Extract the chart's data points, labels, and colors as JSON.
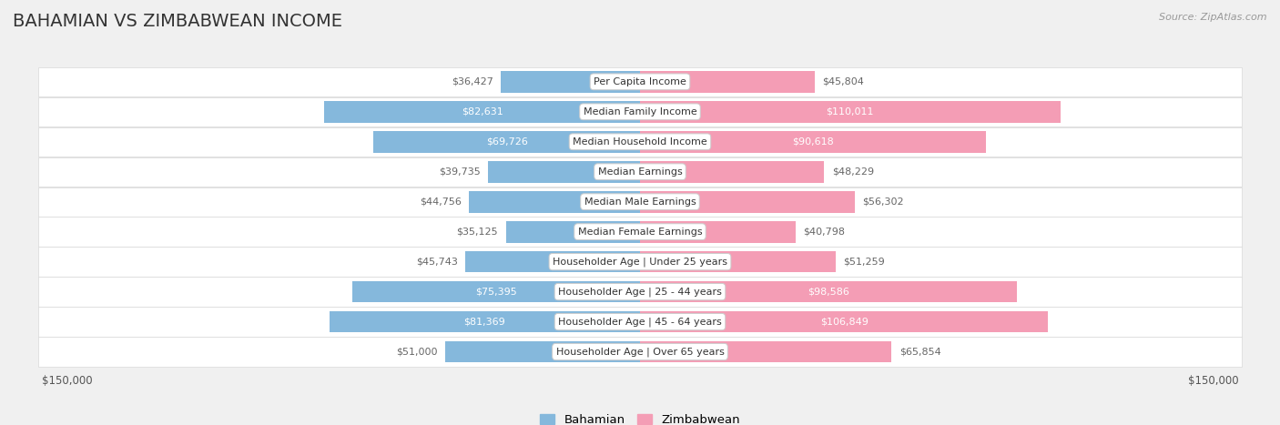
{
  "title": "BAHAMIAN VS ZIMBABWEAN INCOME",
  "source": "Source: ZipAtlas.com",
  "categories": [
    "Per Capita Income",
    "Median Family Income",
    "Median Household Income",
    "Median Earnings",
    "Median Male Earnings",
    "Median Female Earnings",
    "Householder Age | Under 25 years",
    "Householder Age | 25 - 44 years",
    "Householder Age | 45 - 64 years",
    "Householder Age | Over 65 years"
  ],
  "bahamian": [
    36427,
    82631,
    69726,
    39735,
    44756,
    35125,
    45743,
    75395,
    81369,
    51000
  ],
  "zimbabwean": [
    45804,
    110011,
    90618,
    48229,
    56302,
    40798,
    51259,
    98586,
    106849,
    65854
  ],
  "max_val": 150000,
  "bahamian_color": "#85b8dc",
  "zimbabwean_color": "#f49db5",
  "label_color_dark": "#666666",
  "label_color_white": "#ffffff",
  "bg_color": "#f0f0f0",
  "row_bg_color": "#ffffff",
  "legend_bahamian": "Bahamian",
  "legend_zimbabwean": "Zimbabwean",
  "title_fontsize": 14,
  "source_fontsize": 8,
  "label_fontsize": 8,
  "cat_fontsize": 8
}
